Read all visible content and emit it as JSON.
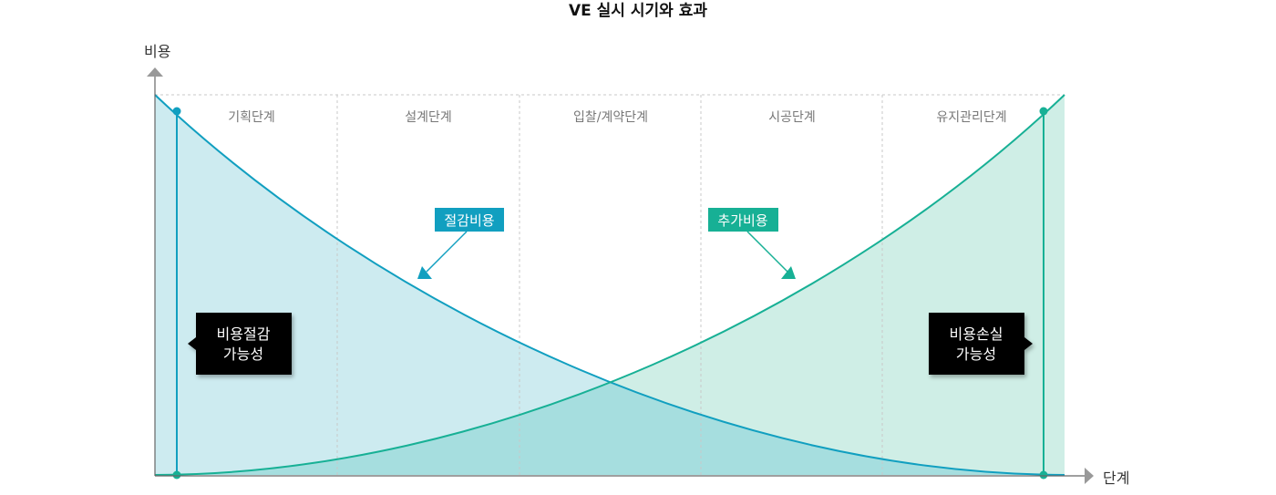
{
  "title": "VE 실시 시기와 효과",
  "y_axis_label": "비용",
  "x_axis_label": "단계",
  "phases": [
    "기획단계",
    "설계단계",
    "입찰/계약단계",
    "시공단계",
    "유지관리단계"
  ],
  "callouts": {
    "saving_cost": "절감비용",
    "added_cost": "추가비용"
  },
  "side_boxes": {
    "left": [
      "비용절감",
      "가능성"
    ],
    "right": [
      "비용손실",
      "가능성"
    ]
  },
  "colors": {
    "saving": "#119fc0",
    "saving_fill": "#cdebf0",
    "added": "#17b095",
    "added_fill": "#cfeee6",
    "overlap_fill": "#a6dedf",
    "box": "#000000",
    "axis": "#666666",
    "grid": "#c8c8c8"
  }
}
